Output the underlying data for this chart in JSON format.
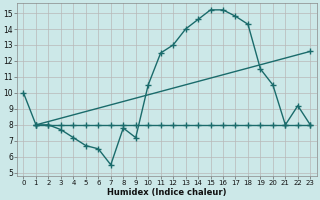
{
  "xlabel": "Humidex (Indice chaleur)",
  "bg_color": "#cce8e8",
  "grid_color": "#b8b8b8",
  "line_color": "#1a6b6b",
  "xlim": [
    -0.5,
    23.5
  ],
  "ylim": [
    4.8,
    15.6
  ],
  "yticks": [
    5,
    6,
    7,
    8,
    9,
    10,
    11,
    12,
    13,
    14,
    15
  ],
  "xticks": [
    0,
    1,
    2,
    3,
    4,
    5,
    6,
    7,
    8,
    9,
    10,
    11,
    12,
    13,
    14,
    15,
    16,
    17,
    18,
    19,
    20,
    21,
    22,
    23
  ],
  "curve1_x": [
    0,
    1,
    2,
    3,
    4,
    5,
    6,
    7,
    8,
    9,
    10,
    11,
    12,
    13,
    14,
    15,
    16,
    17,
    18,
    19,
    20,
    21,
    22,
    23
  ],
  "curve1_y": [
    10,
    8,
    8,
    7.7,
    7.2,
    6.7,
    6.5,
    5.5,
    7.8,
    7.2,
    10.5,
    12.5,
    13.0,
    14.0,
    14.6,
    15.2,
    15.2,
    14.8,
    14.3,
    11.5,
    10.5,
    8.0,
    9.2,
    8.0
  ],
  "curve2_x": [
    1,
    2,
    3,
    4,
    5,
    6,
    7,
    8,
    9,
    10,
    11,
    12,
    13,
    14,
    15,
    16,
    17,
    18,
    19,
    20,
    21,
    22,
    23
  ],
  "curve2_y": [
    8,
    8,
    8,
    8,
    8,
    8,
    8,
    8,
    8,
    8,
    8,
    8,
    8,
    8,
    8,
    8,
    8,
    8,
    8,
    8,
    8,
    8,
    8
  ],
  "curve3_x": [
    1,
    23
  ],
  "curve3_y": [
    8,
    12.6
  ],
  "marker": "+",
  "markersize": 4,
  "linewidth": 1.0,
  "tick_fontsize_x": 5.0,
  "tick_fontsize_y": 5.5,
  "xlabel_fontsize": 6.0
}
